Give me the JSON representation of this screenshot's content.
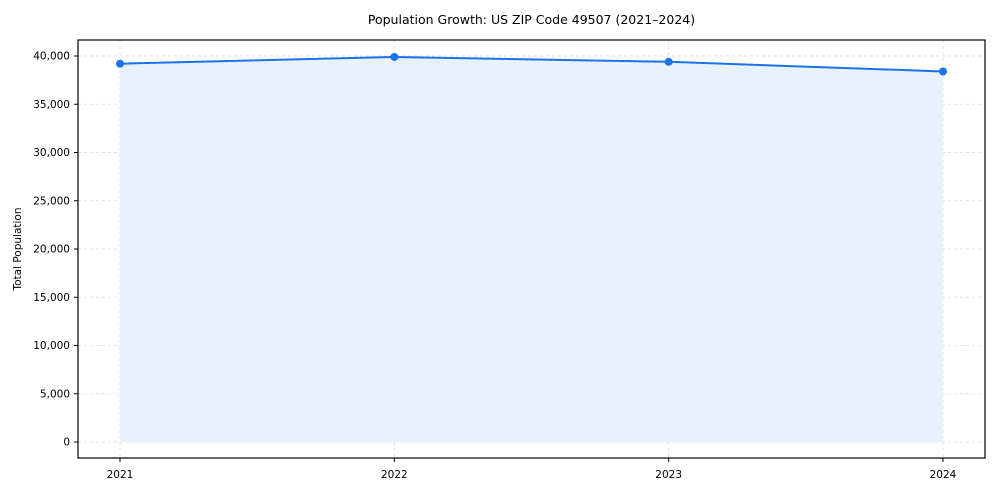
{
  "title": "Population Growth: US ZIP Code 49507 (2021–2024)",
  "chart_data": {
    "type": "area",
    "categories": [
      "2021",
      "2022",
      "2023",
      "2024"
    ],
    "series": [
      {
        "name": "Total Population",
        "values": [
          39200,
          39900,
          39400,
          38400
        ]
      }
    ],
    "title": "Population Growth: US ZIP Code 49507 (2021–2024)",
    "xlabel": "",
    "ylabel": "Total Population",
    "ylim": [
      0,
      40000
    ],
    "ytick_step": 5000,
    "grid": true,
    "grid_style": "dashed",
    "legend_position": "none",
    "colors": {
      "line": "#1a73e8",
      "marker": "#1a73e8",
      "fill": "#e9f1fd",
      "grid": "#d9d9d9",
      "spine": "#000000",
      "background": "#ffffff"
    }
  }
}
